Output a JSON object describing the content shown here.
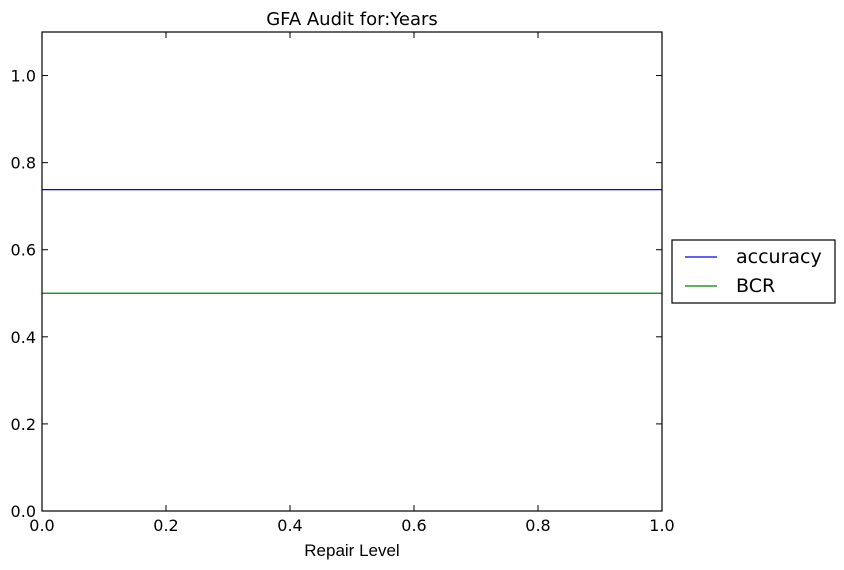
{
  "chart_data": {
    "type": "line",
    "title": "GFA Audit for:Years",
    "xlabel": "Repair Level",
    "ylabel": "",
    "xlim": [
      0.0,
      1.0
    ],
    "ylim": [
      0.0,
      1.1
    ],
    "xticks": [
      "0.0",
      "0.2",
      "0.4",
      "0.6",
      "0.8",
      "1.0"
    ],
    "yticks": [
      "0.0",
      "0.2",
      "0.4",
      "0.6",
      "0.8",
      "1.0"
    ],
    "grid": false,
    "legend_position": "right",
    "series": [
      {
        "name": "accuracy",
        "color": "#0000ff",
        "x": [
          0.0,
          1.0
        ],
        "y": [
          0.738,
          0.738
        ]
      },
      {
        "name": "BCR",
        "color": "#008000",
        "x": [
          0.0,
          1.0
        ],
        "y": [
          0.5,
          0.5
        ]
      }
    ]
  }
}
